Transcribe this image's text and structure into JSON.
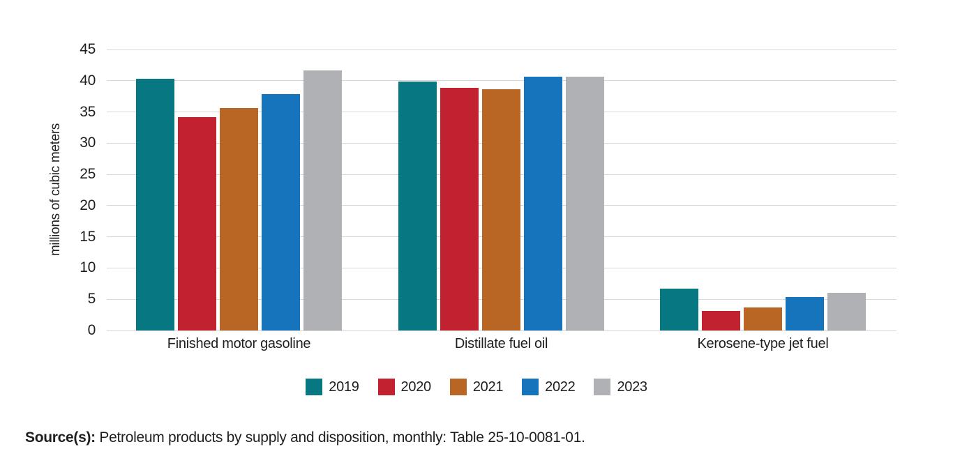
{
  "chart_data": {
    "type": "bar",
    "title": "",
    "xlabel": "",
    "ylabel": "millions of cubic meters",
    "ylim": [
      0,
      45
    ],
    "yticks": [
      0,
      5,
      10,
      15,
      20,
      25,
      30,
      35,
      40,
      45
    ],
    "grid": "horizontal",
    "gridline_color": "#d7d7d7",
    "legend_position": "bottom",
    "categories": [
      "Finished motor gasoline",
      "Distillate fuel oil",
      "Kerosene-type jet fuel"
    ],
    "series": [
      {
        "name": "2019",
        "color": "#077782",
        "values": [
          40.3,
          39.9,
          6.7
        ]
      },
      {
        "name": "2020",
        "color": "#C2212F",
        "values": [
          34.2,
          38.9,
          3.1
        ]
      },
      {
        "name": "2021",
        "color": "#B96524",
        "values": [
          35.6,
          38.6,
          3.7
        ]
      },
      {
        "name": "2022",
        "color": "#1574BC",
        "values": [
          37.9,
          40.6,
          5.4
        ]
      },
      {
        "name": "2023",
        "color": "#AFB1B4",
        "values": [
          41.7,
          40.7,
          6.0
        ]
      }
    ]
  },
  "source": {
    "label": "Source(s):",
    "text": " Petroleum products by supply and disposition, monthly: Table 25-10-0081-01."
  }
}
